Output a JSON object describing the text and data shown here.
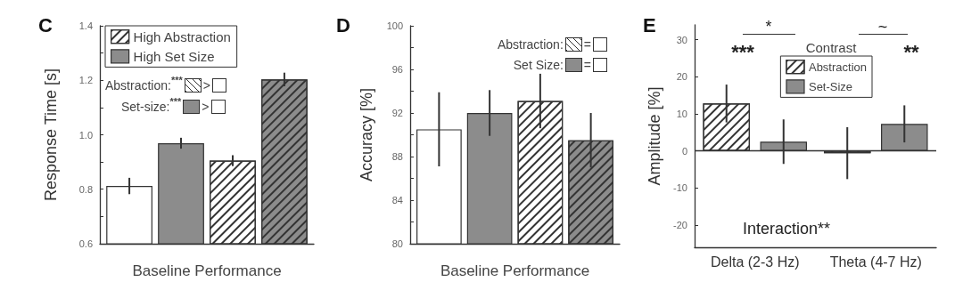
{
  "chart_data": [
    {
      "type": "bar",
      "title": "C",
      "xlabel": "Baseline Performance",
      "ylabel": "Response Time [s]",
      "categories": [
        null
      ],
      "series": [
        {
          "color": "#ffffff",
          "values": [
            0.812
          ],
          "errors": [
            0.03
          ]
        },
        {
          "name": "High Set Size",
          "color": "#8c8c8c",
          "values": [
            0.969
          ],
          "errors": [
            0.02
          ]
        },
        {
          "name": "High Abstraction",
          "color": "#ffffff",
          "values": [
            0.905
          ],
          "errors": [
            0.02
          ]
        },
        {
          "color": "#8c8c8c",
          "values": [
            1.203
          ],
          "errors": [
            0.025
          ]
        }
      ],
      "ylim": [
        0.6,
        1.4
      ],
      "yticks": [
        0.6,
        {
          "value": 0.7,
          "label": null
        },
        0.8,
        {
          "value": 0.9,
          "label": null
        },
        {
          "value": 1,
          "label": "1.0"
        },
        {
          "value": 1.1,
          "label": null
        },
        1.2,
        {
          "value": 1.3,
          "label": null
        },
        1.4
      ],
      "legend": "top left",
      "annotations": [
        "Abstraction:",
        "***",
        ">",
        "Set-size:",
        "***",
        ">"
      ]
    },
    {
      "type": "bar",
      "title": "D",
      "xlabel": "Baseline Performance",
      "ylabel": "Accuracy [%]",
      "categories": [
        null
      ],
      "series": [
        {
          "color": "#ffffff",
          "values": [
            90.5
          ],
          "errors": [
            3.4
          ]
        },
        {
          "color": "#8c8c8c",
          "values": [
            92.0
          ],
          "errors": [
            2.1
          ]
        },
        {
          "color": "#ffffff",
          "values": [
            93.1
          ],
          "errors": [
            2.5
          ]
        },
        {
          "color": "#8c8c8c",
          "values": [
            89.5
          ],
          "errors": [
            2.5
          ]
        }
      ],
      "ylim": [
        80,
        100
      ],
      "yticks": [
        80,
        {
          "value": 82,
          "label": null
        },
        84,
        {
          "value": 86,
          "label": null
        },
        88,
        {
          "value": 90,
          "label": null
        },
        92,
        {
          "value": 94,
          "label": null
        },
        96,
        {
          "value": 98,
          "label": null
        },
        100
      ],
      "annotations": [
        "Abstraction:",
        "=",
        "Set Size:",
        "="
      ]
    },
    {
      "type": "bar",
      "title": "E",
      "ylabel": "Amplitude [%]",
      "categories": [
        "Delta (2-3 Hz)",
        "Theta (4-7 Hz)"
      ],
      "series": [
        {
          "name": "Abstraction",
          "color": "#ffffff",
          "values": [
            12.8,
            -0.6
          ],
          "errors": [
            5.1,
            7
          ]
        },
        {
          "name": "Set-Size",
          "color": "#8c8c8c",
          "values": [
            2.5,
            7.3
          ],
          "errors": [
            6,
            5
          ]
        }
      ],
      "ylim": [
        -26,
        34
      ],
      "yticks": [
        -20,
        -10,
        0,
        10,
        20,
        30
      ],
      "legend": "top right",
      "legend_title": "Contrast",
      "ref_lines": [
        {
          "axis": "y",
          "value": 0
        }
      ],
      "annotations": [
        "***",
        "**",
        "*",
        "~",
        "Interaction**"
      ]
    }
  ]
}
